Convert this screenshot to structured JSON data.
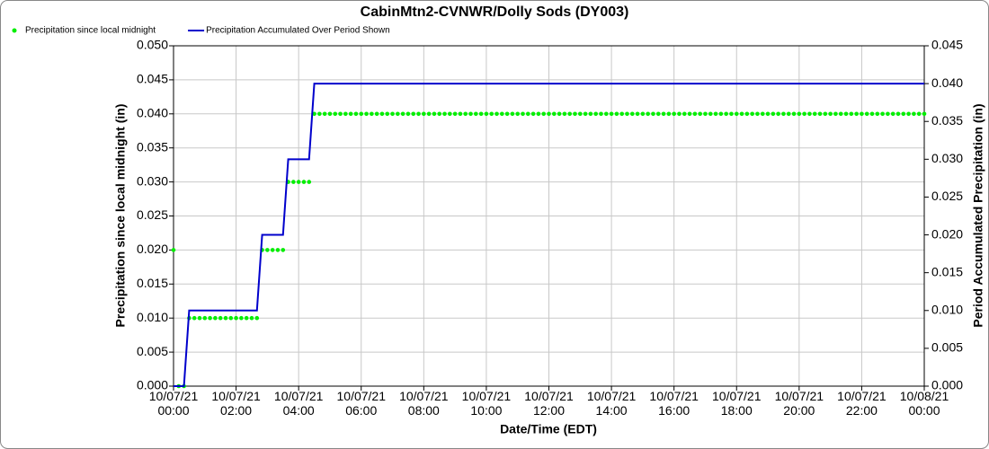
{
  "chart_data": {
    "type": "line",
    "title": "CabinMtn2-CVNWR/Dolly Sods (DY003)",
    "x_label": "Date/Time (EDT)",
    "y_label": "Precipitation since local midnight (in)",
    "y2_label": "Period Accumulated Precipitation (in)",
    "x": [
      "10/07/21 00:00",
      "10/07/21 00:10",
      "10/07/21 00:20",
      "10/07/21 00:30",
      "10/07/21 00:40",
      "10/07/21 00:50",
      "10/07/21 01:00",
      "10/07/21 01:10",
      "10/07/21 01:20",
      "10/07/21 01:30",
      "10/07/21 01:40",
      "10/07/21 01:50",
      "10/07/21 02:00",
      "10/07/21 02:10",
      "10/07/21 02:20",
      "10/07/21 02:30",
      "10/07/21 02:40",
      "10/07/21 02:50",
      "10/07/21 03:00",
      "10/07/21 03:10",
      "10/07/21 03:20",
      "10/07/21 03:30",
      "10/07/21 03:40",
      "10/07/21 03:50",
      "10/07/21 04:00",
      "10/07/21 04:10",
      "10/07/21 04:20",
      "10/07/21 04:30",
      "10/07/21 04:40",
      "10/07/21 04:50",
      "10/07/21 05:00",
      "10/07/21 05:10",
      "10/07/21 05:20",
      "10/07/21 05:30",
      "10/07/21 05:40",
      "10/07/21 05:50",
      "10/07/21 06:00",
      "10/07/21 06:10",
      "10/07/21 06:20",
      "10/07/21 06:30",
      "10/07/21 06:40",
      "10/07/21 06:50",
      "10/07/21 07:00",
      "10/07/21 07:10",
      "10/07/21 07:20",
      "10/07/21 07:30",
      "10/07/21 07:40",
      "10/07/21 07:50",
      "10/07/21 08:00",
      "10/07/21 08:10",
      "10/07/21 08:20",
      "10/07/21 08:30",
      "10/07/21 08:40",
      "10/07/21 08:50",
      "10/07/21 09:00",
      "10/07/21 09:10",
      "10/07/21 09:20",
      "10/07/21 09:30",
      "10/07/21 09:40",
      "10/07/21 09:50",
      "10/07/21 10:00",
      "10/07/21 10:10",
      "10/07/21 10:20",
      "10/07/21 10:30",
      "10/07/21 10:40",
      "10/07/21 10:50",
      "10/07/21 11:00",
      "10/07/21 11:10",
      "10/07/21 11:20",
      "10/07/21 11:30",
      "10/07/21 11:40",
      "10/07/21 11:50",
      "10/07/21 12:00",
      "10/07/21 12:10",
      "10/07/21 12:20",
      "10/07/21 12:30",
      "10/07/21 12:40",
      "10/07/21 12:50",
      "10/07/21 13:00",
      "10/07/21 13:10",
      "10/07/21 13:20",
      "10/07/21 13:30",
      "10/07/21 13:40",
      "10/07/21 13:50",
      "10/07/21 14:00",
      "10/07/21 14:10",
      "10/07/21 14:20",
      "10/07/21 14:30",
      "10/07/21 14:40",
      "10/07/21 14:50",
      "10/07/21 15:00",
      "10/07/21 15:10",
      "10/07/21 15:20",
      "10/07/21 15:30",
      "10/07/21 15:40",
      "10/07/21 15:50",
      "10/07/21 16:00",
      "10/07/21 16:10",
      "10/07/21 16:20",
      "10/07/21 16:30",
      "10/07/21 16:40",
      "10/07/21 16:50",
      "10/07/21 17:00",
      "10/07/21 17:10",
      "10/07/21 17:20",
      "10/07/21 17:30",
      "10/07/21 17:40",
      "10/07/21 17:50",
      "10/07/21 18:00",
      "10/07/21 18:10",
      "10/07/21 18:20",
      "10/07/21 18:30",
      "10/07/21 18:40",
      "10/07/21 18:50",
      "10/07/21 19:00",
      "10/07/21 19:10",
      "10/07/21 19:20",
      "10/07/21 19:30",
      "10/07/21 19:40",
      "10/07/21 19:50",
      "10/07/21 20:00",
      "10/07/21 20:10",
      "10/07/21 20:20",
      "10/07/21 20:30",
      "10/07/21 20:40",
      "10/07/21 20:50",
      "10/07/21 21:00",
      "10/07/21 21:10",
      "10/07/21 21:20",
      "10/07/21 21:30",
      "10/07/21 21:40",
      "10/07/21 21:50",
      "10/07/21 22:00",
      "10/07/21 22:10",
      "10/07/21 22:20",
      "10/07/21 22:30",
      "10/07/21 22:40",
      "10/07/21 22:50",
      "10/07/21 23:00",
      "10/07/21 23:10",
      "10/07/21 23:20",
      "10/07/21 23:30",
      "10/07/21 23:40",
      "10/07/21 23:50",
      "10/08/21 00:00"
    ],
    "series": [
      {
        "name": "Precipitation since local midnight",
        "color": "#00ee00",
        "style": "dots",
        "values": [
          0.02,
          0,
          0,
          0.01,
          0.01,
          0.01,
          0.01,
          0.01,
          0.01,
          0.01,
          0.01,
          0.01,
          0.01,
          0.01,
          0.01,
          0.01,
          0.01,
          0.02,
          0.02,
          0.02,
          0.02,
          0.02,
          0.03,
          0.03,
          0.03,
          0.03,
          0.03,
          0.04,
          0.04,
          0.04,
          0.04,
          0.04,
          0.04,
          0.04,
          0.04,
          0.04,
          0.04,
          0.04,
          0.04,
          0.04,
          0.04,
          0.04,
          0.04,
          0.04,
          0.04,
          0.04,
          0.04,
          0.04,
          0.04,
          0.04,
          0.04,
          0.04,
          0.04,
          0.04,
          0.04,
          0.04,
          0.04,
          0.04,
          0.04,
          0.04,
          0.04,
          0.04,
          0.04,
          0.04,
          0.04,
          0.04,
          0.04,
          0.04,
          0.04,
          0.04,
          0.04,
          0.04,
          0.04,
          0.04,
          0.04,
          0.04,
          0.04,
          0.04,
          0.04,
          0.04,
          0.04,
          0.04,
          0.04,
          0.04,
          0.04,
          0.04,
          0.04,
          0.04,
          0.04,
          0.04,
          0.04,
          0.04,
          0.04,
          0.04,
          0.04,
          0.04,
          0.04,
          0.04,
          0.04,
          0.04,
          0.04,
          0.04,
          0.04,
          0.04,
          0.04,
          0.04,
          0.04,
          0.04,
          0.04,
          0.04,
          0.04,
          0.04,
          0.04,
          0.04,
          0.04,
          0.04,
          0.04,
          0.04,
          0.04,
          0.04,
          0.04,
          0.04,
          0.04,
          0.04,
          0.04,
          0.04,
          0.04,
          0.04,
          0.04,
          0.04,
          0.04,
          0.04,
          0.04,
          0.04,
          0.04,
          0.04,
          0.04,
          0.04,
          0.04,
          0.04,
          0.04,
          0.04,
          0.04,
          0.04,
          0.04
        ]
      },
      {
        "name": "Precipitation Accumulated Over Period Shown",
        "color": "#0000cc",
        "style": "line",
        "axis": "y2",
        "values": [
          0,
          0,
          0,
          0.01,
          0.01,
          0.01,
          0.01,
          0.01,
          0.01,
          0.01,
          0.01,
          0.01,
          0.01,
          0.01,
          0.01,
          0.01,
          0.01,
          0.02,
          0.02,
          0.02,
          0.02,
          0.02,
          0.03,
          0.03,
          0.03,
          0.03,
          0.03,
          0.04,
          0.04,
          0.04,
          0.04,
          0.04,
          0.04,
          0.04,
          0.04,
          0.04,
          0.04,
          0.04,
          0.04,
          0.04,
          0.04,
          0.04,
          0.04,
          0.04,
          0.04,
          0.04,
          0.04,
          0.04,
          0.04,
          0.04,
          0.04,
          0.04,
          0.04,
          0.04,
          0.04,
          0.04,
          0.04,
          0.04,
          0.04,
          0.04,
          0.04,
          0.04,
          0.04,
          0.04,
          0.04,
          0.04,
          0.04,
          0.04,
          0.04,
          0.04,
          0.04,
          0.04,
          0.04,
          0.04,
          0.04,
          0.04,
          0.04,
          0.04,
          0.04,
          0.04,
          0.04,
          0.04,
          0.04,
          0.04,
          0.04,
          0.04,
          0.04,
          0.04,
          0.04,
          0.04,
          0.04,
          0.04,
          0.04,
          0.04,
          0.04,
          0.04,
          0.04,
          0.04,
          0.04,
          0.04,
          0.04,
          0.04,
          0.04,
          0.04,
          0.04,
          0.04,
          0.04,
          0.04,
          0.04,
          0.04,
          0.04,
          0.04,
          0.04,
          0.04,
          0.04,
          0.04,
          0.04,
          0.04,
          0.04,
          0.04,
          0.04,
          0.04,
          0.04,
          0.04,
          0.04,
          0.04,
          0.04,
          0.04,
          0.04,
          0.04,
          0.04,
          0.04,
          0.04,
          0.04,
          0.04,
          0.04,
          0.04,
          0.04,
          0.04,
          0.04,
          0.04,
          0.04,
          0.04,
          0.04,
          0.04
        ]
      }
    ],
    "xticks": [
      "10/07/21 00:00",
      "10/07/21 02:00",
      "10/07/21 04:00",
      "10/07/21 06:00",
      "10/07/21 08:00",
      "10/07/21 10:00",
      "10/07/21 12:00",
      "10/07/21 14:00",
      "10/07/21 16:00",
      "10/07/21 18:00",
      "10/07/21 20:00",
      "10/07/21 22:00",
      "10/08/21 00:00"
    ],
    "ylim": [
      0,
      0.05
    ],
    "yticks": [
      {
        "value": 0,
        "label": "0.000"
      },
      {
        "value": 0.005,
        "label": "0.005"
      },
      {
        "value": 0.01,
        "label": "0.010"
      },
      {
        "value": 0.015,
        "label": "0.015"
      },
      {
        "value": 0.02,
        "label": "0.020"
      },
      {
        "value": 0.025,
        "label": "0.025"
      },
      {
        "value": 0.03,
        "label": "0.030"
      },
      {
        "value": 0.035,
        "label": "0.035"
      },
      {
        "value": 0.04,
        "label": "0.040"
      },
      {
        "value": 0.045,
        "label": "0.045"
      },
      {
        "value": 0.05,
        "label": "0.050"
      }
    ],
    "y2lim": [
      0,
      0.045
    ],
    "y2ticks": [
      {
        "value": 0,
        "label": "0.000"
      },
      {
        "value": 0.005,
        "label": "0.005"
      },
      {
        "value": 0.01,
        "label": "0.010"
      },
      {
        "value": 0.015,
        "label": "0.015"
      },
      {
        "value": 0.02,
        "label": "0.020"
      },
      {
        "value": 0.025,
        "label": "0.025"
      },
      {
        "value": 0.03,
        "label": "0.030"
      },
      {
        "value": 0.035,
        "label": "0.035"
      },
      {
        "value": 0.04,
        "label": "0.040"
      },
      {
        "value": 0.045,
        "label": "0.045"
      }
    ],
    "grid": true,
    "legend": "top-left"
  }
}
